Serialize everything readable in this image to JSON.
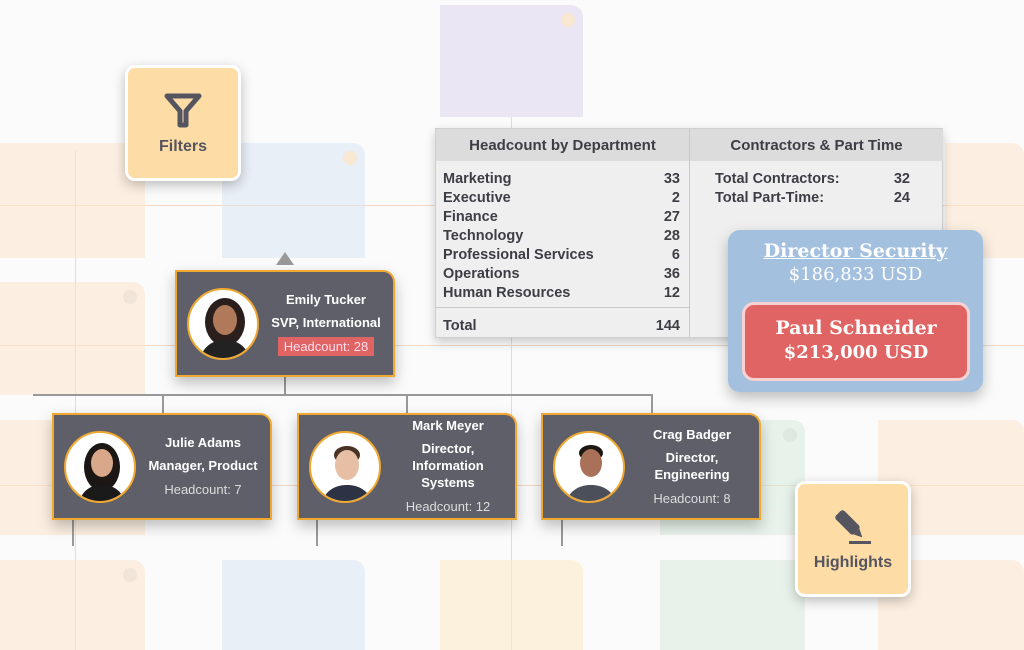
{
  "tools": {
    "filters_label": "Filters",
    "highlights_label": "Highlights"
  },
  "headcount_table": {
    "title": "Headcount by Department",
    "rows": [
      {
        "dept": "Marketing",
        "count": "33"
      },
      {
        "dept": "Executive",
        "count": "2"
      },
      {
        "dept": "Finance",
        "count": "27"
      },
      {
        "dept": "Technology",
        "count": "28"
      },
      {
        "dept": "Professional Services",
        "count": "6"
      },
      {
        "dept": "Operations",
        "count": "36"
      },
      {
        "dept": "Human Resources",
        "count": "12"
      }
    ],
    "total_label": "Total",
    "total": "144"
  },
  "contractors": {
    "title": "Contractors & Part Time",
    "rows": [
      {
        "label": "Total Contractors:",
        "value": "32"
      },
      {
        "label": "Total Part-Time:",
        "value": "24"
      }
    ]
  },
  "salary_card": {
    "role": "Director Security",
    "role_salary": "$186,833 USD",
    "person": "Paul Schneider",
    "person_salary": "$213,000 USD"
  },
  "org": {
    "root": {
      "name": "Emily Tucker",
      "title": "SVP, International",
      "headcount": "Headcount: 28"
    },
    "children": [
      {
        "name": "Julie Adams",
        "title": "Manager, Product",
        "headcount": "Headcount: 7"
      },
      {
        "name": "Mark Meyer",
        "title": "Director, Information Systems",
        "headcount": "Headcount: 12"
      },
      {
        "name": "Crag Badger",
        "title": "Director, Engineering",
        "headcount": "Headcount: 8"
      }
    ]
  },
  "colors": {
    "card": "#5f5f69",
    "card_border": "#f0a830",
    "highlight": "#e06464",
    "tool_bg": "#fddca6",
    "salary_bg": "#a4c0df"
  }
}
